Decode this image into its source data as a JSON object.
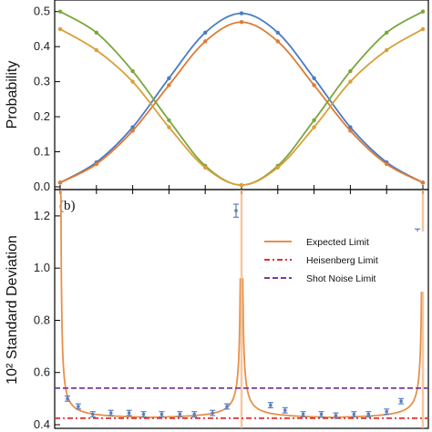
{
  "chart_data": [
    {
      "type": "line",
      "ylabel": "Probability",
      "ylim": [
        0,
        0.52
      ],
      "xlim": [
        0,
        1
      ],
      "yticks": [
        "0.0",
        "0.1",
        "0.2",
        "0.3",
        "0.4",
        "0.5"
      ],
      "series": [
        {
          "color": "#4a7cc4",
          "x": [
            0.0,
            0.1,
            0.2,
            0.3,
            0.4,
            0.5,
            0.6,
            0.7,
            0.8,
            0.9,
            1.0
          ],
          "values": [
            0.012,
            0.07,
            0.17,
            0.31,
            0.44,
            0.495,
            0.44,
            0.31,
            0.17,
            0.07,
            0.012
          ]
        },
        {
          "color": "#e07a33",
          "x": [
            0.0,
            0.1,
            0.2,
            0.3,
            0.4,
            0.5,
            0.6,
            0.7,
            0.8,
            0.9,
            1.0
          ],
          "values": [
            0.012,
            0.065,
            0.16,
            0.29,
            0.415,
            0.47,
            0.415,
            0.29,
            0.16,
            0.065,
            0.012
          ]
        },
        {
          "color": "#7aa63c",
          "x": [
            0.0,
            0.1,
            0.2,
            0.3,
            0.4,
            0.5,
            0.6,
            0.7,
            0.8,
            0.9,
            1.0
          ],
          "values": [
            0.5,
            0.44,
            0.33,
            0.19,
            0.06,
            0.005,
            0.06,
            0.19,
            0.33,
            0.44,
            0.5
          ]
        },
        {
          "color": "#d9a03a",
          "x": [
            0.0,
            0.1,
            0.2,
            0.3,
            0.4,
            0.5,
            0.6,
            0.7,
            0.8,
            0.9,
            1.0
          ],
          "values": [
            0.45,
            0.39,
            0.3,
            0.17,
            0.055,
            0.005,
            0.055,
            0.17,
            0.3,
            0.39,
            0.45
          ]
        }
      ]
    },
    {
      "type": "line",
      "panel_label": "(b)",
      "ylabel": "10² Standard Deviation",
      "ylim": [
        0.4,
        1.28
      ],
      "xlim": [
        0,
        1
      ],
      "yticks": [
        "0.4",
        "0.6",
        "0.8",
        "1.0",
        "1.2"
      ],
      "legend_position": "top-right",
      "legend": [
        {
          "label": "Expected Limit",
          "color": "#e8904a",
          "dash": "solid"
        },
        {
          "label": "Heisenberg Limit",
          "color": "#e03030",
          "dash": "dashdot"
        },
        {
          "label": "Shot Noise Limit",
          "color": "#7a3a9a",
          "dash": "dashed"
        }
      ],
      "heisenberg_limit": 0.425,
      "shot_noise_limit": 0.54,
      "expected_poles": [
        0.5,
        1.0
      ],
      "error_points": {
        "color": "#5a7fbf",
        "x": [
          0.02,
          0.05,
          0.09,
          0.14,
          0.19,
          0.23,
          0.28,
          0.33,
          0.37,
          0.42,
          0.46,
          0.485,
          0.58,
          0.62,
          0.67,
          0.72,
          0.76,
          0.81,
          0.85,
          0.9,
          0.94,
          0.985
        ],
        "values": [
          0.5,
          0.47,
          0.44,
          0.445,
          0.445,
          0.44,
          0.44,
          0.44,
          0.44,
          0.445,
          0.47,
          1.22,
          0.475,
          0.455,
          0.44,
          0.44,
          0.435,
          0.44,
          0.44,
          0.45,
          0.49,
          1.13
        ],
        "errors": [
          0.01,
          0.01,
          0.01,
          0.01,
          0.01,
          0.01,
          0.01,
          0.01,
          0.01,
          0.01,
          0.01,
          0.025,
          0.01,
          0.01,
          0.01,
          0.01,
          0.01,
          0.01,
          0.01,
          0.01,
          0.01,
          0.02
        ]
      }
    }
  ]
}
